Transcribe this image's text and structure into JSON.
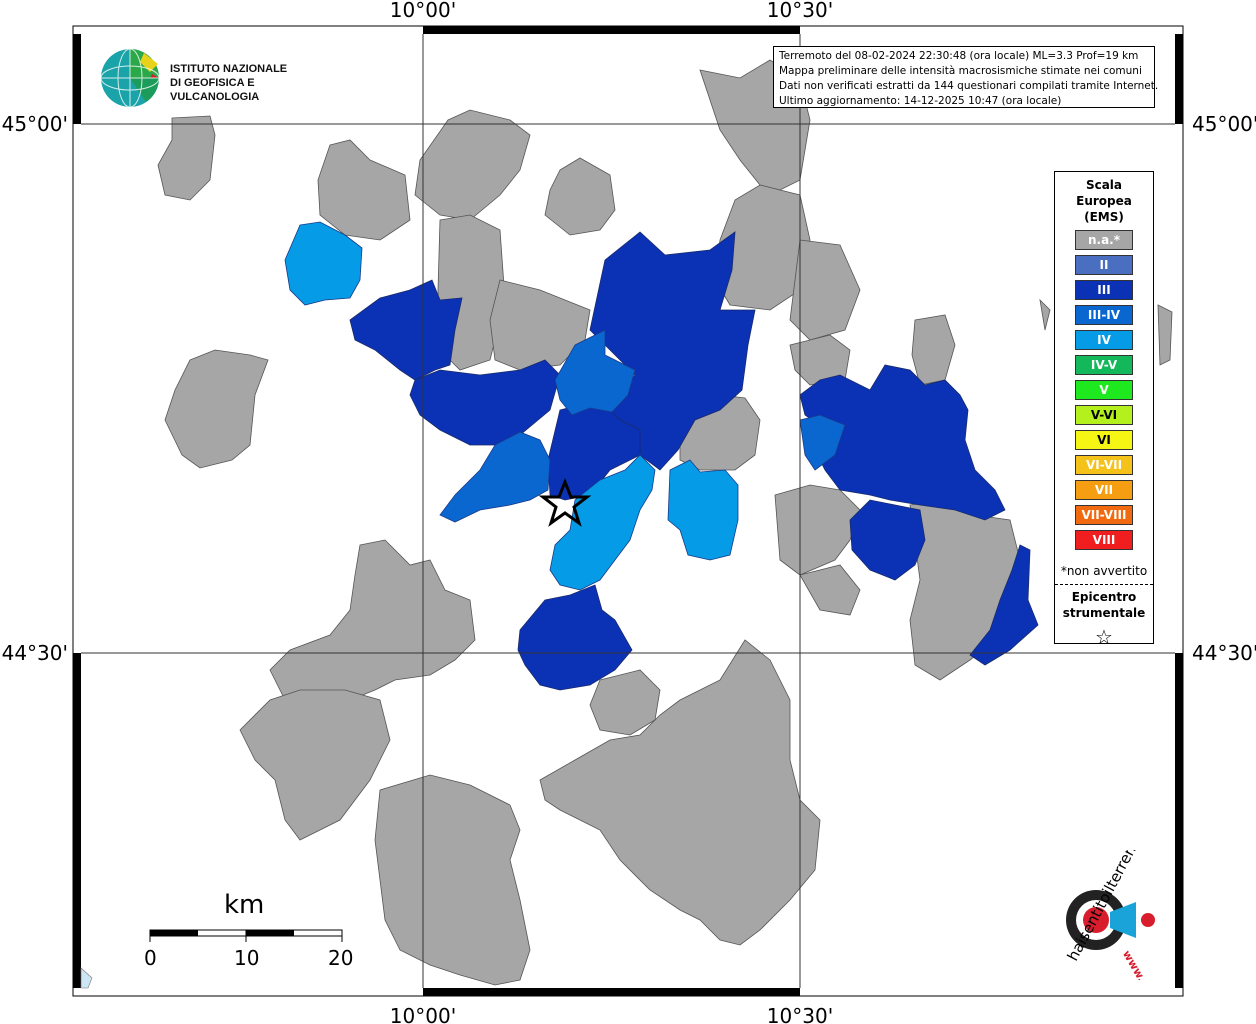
{
  "coords": {
    "top_lon": [
      "10°00'",
      "10°30'"
    ],
    "bottom_lon": [
      "10°00'",
      "10°30'"
    ],
    "left_lat": [
      "45°00'",
      "44°30'"
    ],
    "right_lat": [
      "45°00'",
      "44°30'"
    ]
  },
  "header": {
    "org_line1": "ISTITUTO NAZIONALE",
    "org_line2": "DI GEOFISICA E VULCANOLOGIA"
  },
  "info": {
    "line1": "Terremoto del 08-02-2024 22:30:48 (ora locale) ML=3.3 Prof=19 km",
    "line2": "Mappa preliminare delle intensità macrosismiche stimate nei comuni",
    "line3": "Dati non verificati estratti da 144 questionari compilati tramite Internet.",
    "line4": "Ultimo aggiornamento: 14-12-2025 10:47 (ora locale)"
  },
  "legend": {
    "title_line1": "Scala",
    "title_line2": "Europea",
    "title_line3": "(EMS)",
    "items": [
      {
        "label": "n.a.*",
        "color": "#a6a6a6"
      },
      {
        "label": "II",
        "color": "#4a6fc0"
      },
      {
        "label": "III",
        "color": "#0b32b5"
      },
      {
        "label": "III-IV",
        "color": "#0a67d0"
      },
      {
        "label": "IV",
        "color": "#059be6"
      },
      {
        "label": "IV-V",
        "color": "#12b85a"
      },
      {
        "label": "V",
        "color": "#1ee81e"
      },
      {
        "label": "V-VI",
        "color": "#b4f01e"
      },
      {
        "label": "VI",
        "color": "#f6f615"
      },
      {
        "label": "VI-VII",
        "color": "#f5c21a"
      },
      {
        "label": "VII",
        "color": "#f59e12"
      },
      {
        "label": "VII-VIII",
        "color": "#f26a10"
      },
      {
        "label": "VIII",
        "color": "#f01e1e"
      }
    ],
    "note": "*non avvertito",
    "epicenter_line1": "Epicentro",
    "epicenter_line2": "strumentale",
    "epicenter_symbol": "☆"
  },
  "scalebar": {
    "unit": "km",
    "ticks": [
      "0",
      "10",
      "20"
    ]
  },
  "site_logo": {
    "text": "haisentitoilterremoto.it",
    "url_text": "www."
  },
  "colors": {
    "na": "#a6a6a6",
    "iii": "#0b32b5",
    "iii_iv": "#0a67d0",
    "iv": "#059be6"
  }
}
